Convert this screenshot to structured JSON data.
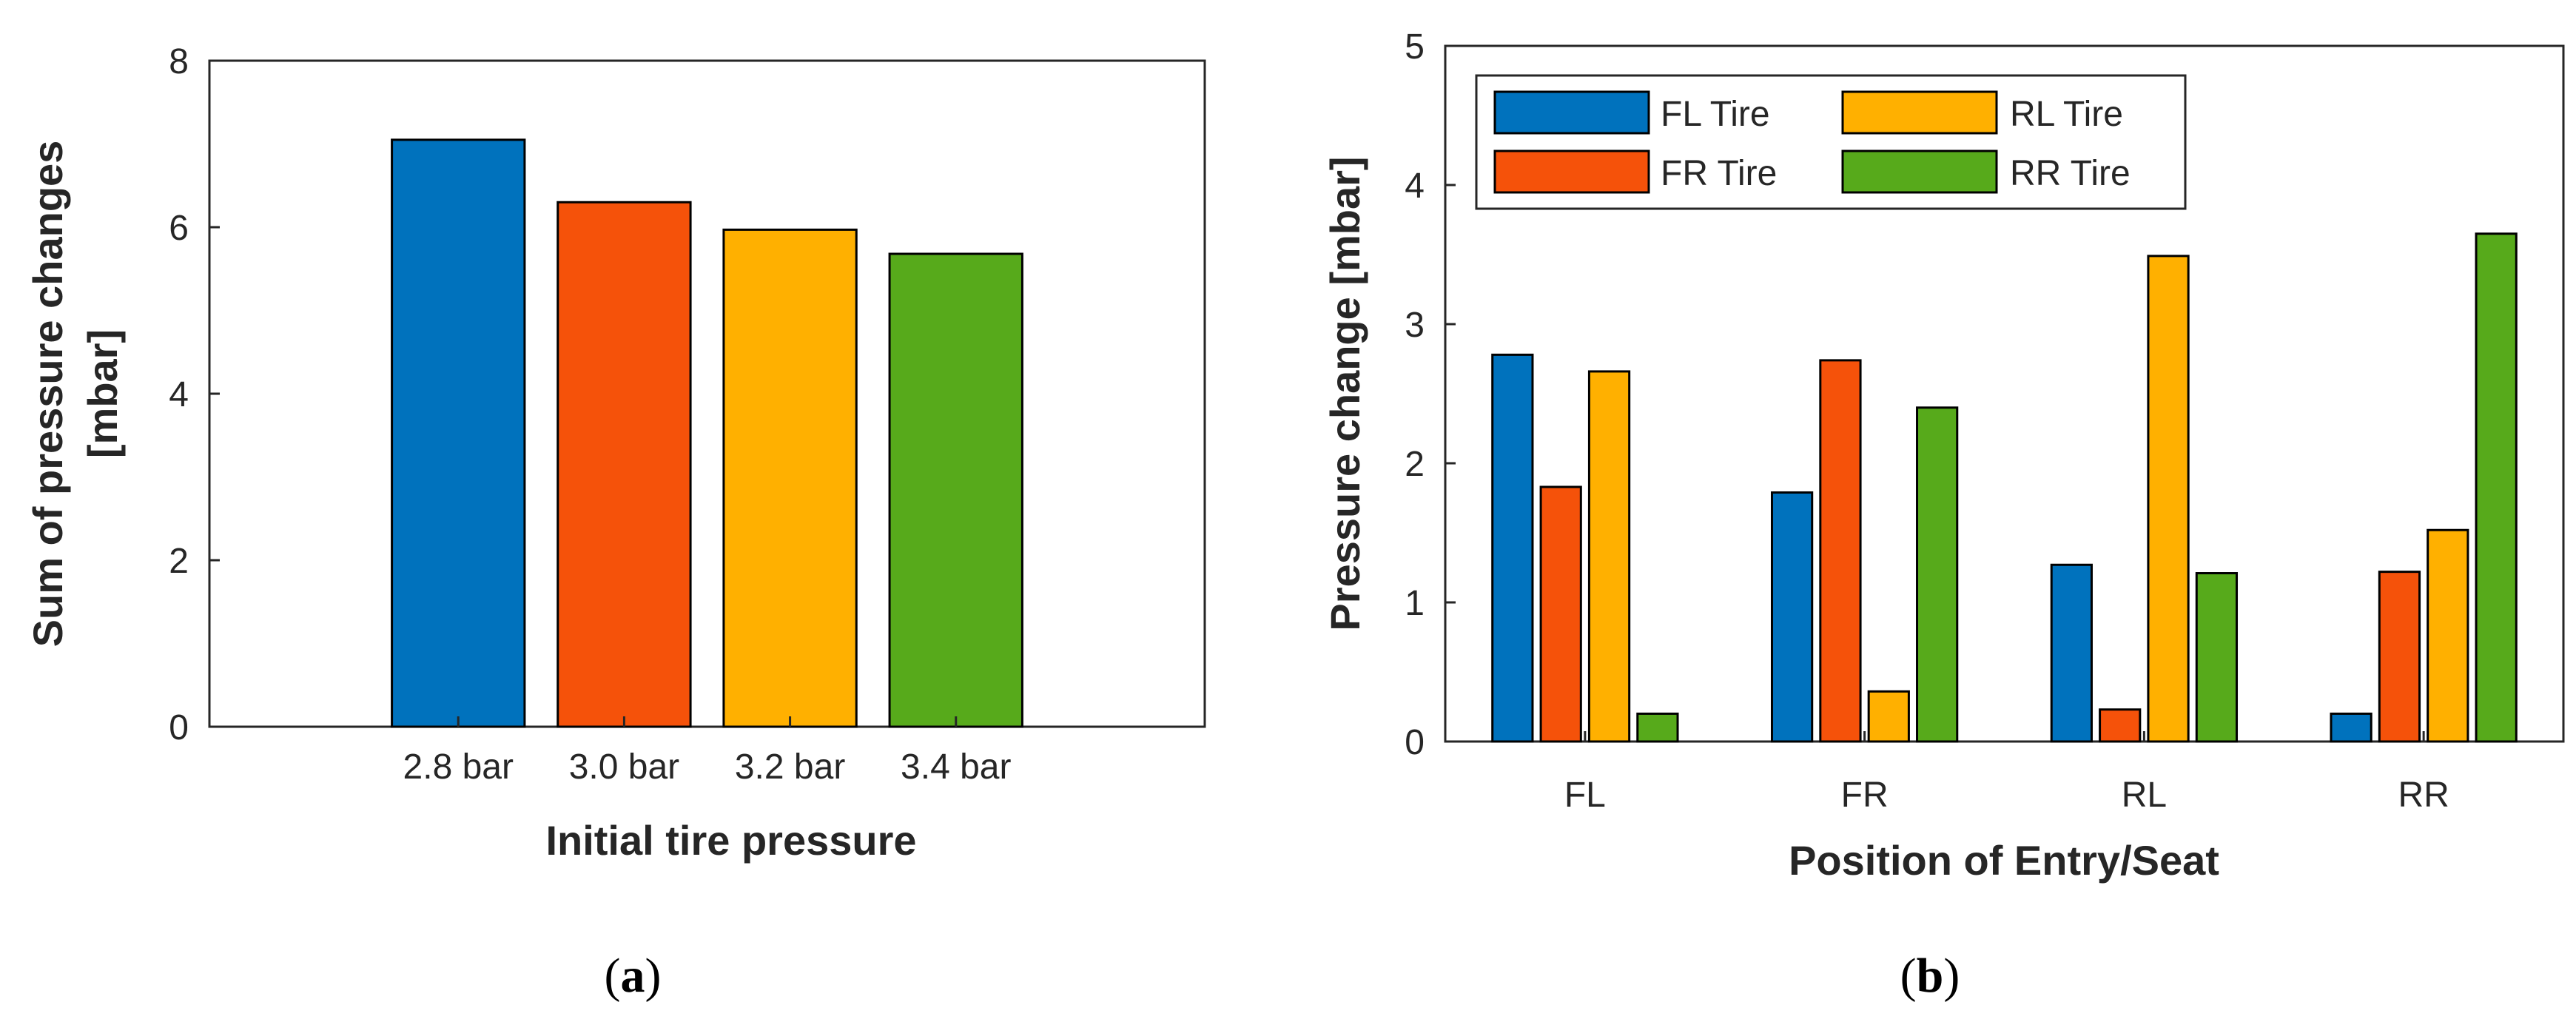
{
  "chart_data": [
    {
      "id": "a",
      "type": "bar",
      "caption_open": "(",
      "caption_letter": "a",
      "caption_close": ")",
      "title": "",
      "xlabel": "Initial tire pressure",
      "ylabel_line1": "Sum of pressure changes",
      "ylabel_line2": "[mbar]",
      "categories": [
        "2.8 bar",
        "3.0 bar",
        "3.2 bar",
        "3.4 bar"
      ],
      "values": [
        7.05,
        6.3,
        5.97,
        5.68
      ],
      "colors": [
        "#0072BD",
        "#F5520A",
        "#FFB000",
        "#57AA1B"
      ],
      "ylim": [
        0,
        8
      ],
      "yticks": [
        0,
        2,
        4,
        6,
        8
      ],
      "grid": false
    },
    {
      "id": "b",
      "type": "bar",
      "caption_open": "(",
      "caption_letter": "b",
      "caption_close": ")",
      "title": "",
      "xlabel": "Position of Entry/Seat",
      "ylabel": "Pressure change [mbar]",
      "categories": [
        "FL",
        "FR",
        "RL",
        "RR"
      ],
      "series": [
        {
          "name": "FL Tire",
          "color": "#0072BD",
          "values": [
            2.78,
            1.79,
            1.27,
            0.2
          ]
        },
        {
          "name": "FR Tire",
          "color": "#F5520A",
          "values": [
            1.83,
            2.74,
            0.23,
            1.22
          ]
        },
        {
          "name": "RL Tire",
          "color": "#FFB000",
          "values": [
            2.66,
            0.36,
            3.49,
            1.52
          ]
        },
        {
          "name": "RR Tire",
          "color": "#57AA1B",
          "values": [
            0.2,
            2.4,
            1.21,
            3.65
          ]
        }
      ],
      "ylim": [
        0,
        5
      ],
      "yticks": [
        0,
        1,
        2,
        3,
        4,
        5
      ],
      "legend_position": "top-left",
      "grid": false
    }
  ]
}
